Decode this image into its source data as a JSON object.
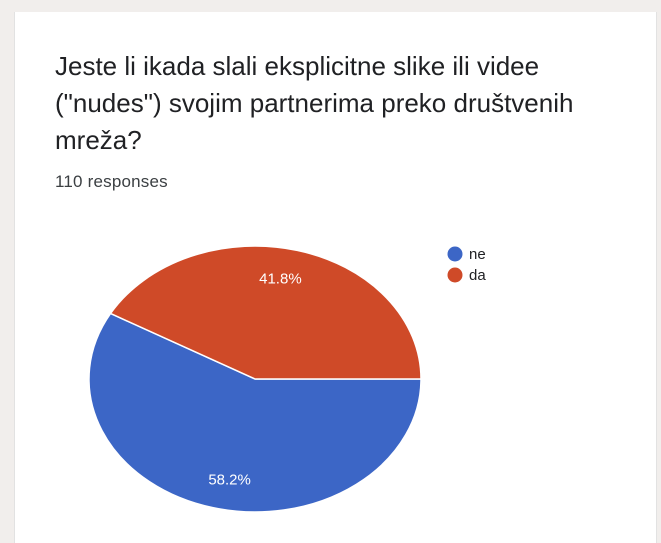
{
  "question": "Jeste li ikada slali eksplicitne slike ili videe (\"nudes\") svojim partnerima preko društvenih mreža?",
  "responses_label": "110 responses",
  "chart_data": {
    "type": "pie",
    "slices": [
      {
        "name": "ne",
        "value": 58.2,
        "label": "58.2%",
        "color": "#3c66c6"
      },
      {
        "name": "da",
        "value": 41.8,
        "label": "41.8%",
        "color": "#cf4a28"
      }
    ],
    "legend": [
      "ne",
      "da"
    ],
    "legend_position": "top-right"
  }
}
